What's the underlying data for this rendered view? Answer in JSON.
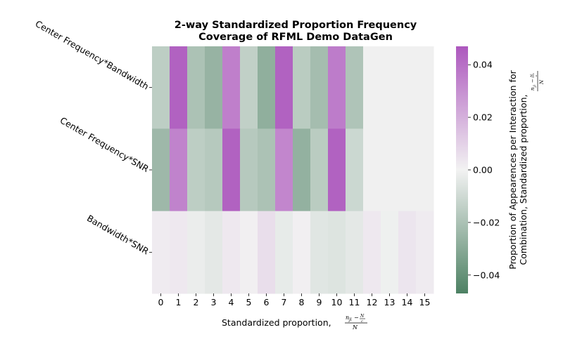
{
  "chart_data": {
    "type": "heatmap",
    "title_lines": [
      "2-way Standardized Proportion Frequency",
      "Coverage of RFML Demo DataGen"
    ],
    "xlabel": "Standardized proportion,",
    "colorbar_label_lines": [
      "Proportion of Appearences per Interaction for",
      "Combination, Standardized proportion,"
    ],
    "x_categories": [
      "0",
      "1",
      "2",
      "3",
      "4",
      "5",
      "6",
      "7",
      "8",
      "9",
      "10",
      "11",
      "12",
      "13",
      "14",
      "15"
    ],
    "y_categories": [
      "Center Frequency*Bandwidth",
      "Center Frequency*SNR",
      "Bandwidth*SNR"
    ],
    "values": [
      [
        -0.015,
        0.044,
        -0.02,
        -0.026,
        0.035,
        -0.014,
        -0.028,
        0.044,
        -0.016,
        -0.022,
        0.036,
        -0.019,
        null,
        null,
        null,
        null
      ],
      [
        -0.024,
        0.034,
        -0.015,
        -0.017,
        0.044,
        -0.017,
        -0.02,
        0.033,
        -0.027,
        -0.016,
        0.044,
        -0.011,
        null,
        null,
        null,
        null
      ],
      [
        0.002,
        0.003,
        -0.002,
        -0.004,
        0.003,
        0.001,
        0.006,
        -0.003,
        0.001,
        -0.005,
        -0.006,
        -0.004,
        0.003,
        -0.001,
        0.004,
        0.002
      ]
    ],
    "colorbar": {
      "vmin": -0.047,
      "vmax": 0.047,
      "ticks": [
        -0.04,
        -0.02,
        0.0,
        0.02,
        0.04
      ],
      "tick_labels": [
        "−0.04",
        "−0.02",
        "0.00",
        "0.02",
        "0.04"
      ],
      "low_color": "#4d8163",
      "mid_color": "#f2f2f2",
      "high_color": "#ad58be",
      "empty_color": "#f0f0f0"
    },
    "grid": false
  }
}
